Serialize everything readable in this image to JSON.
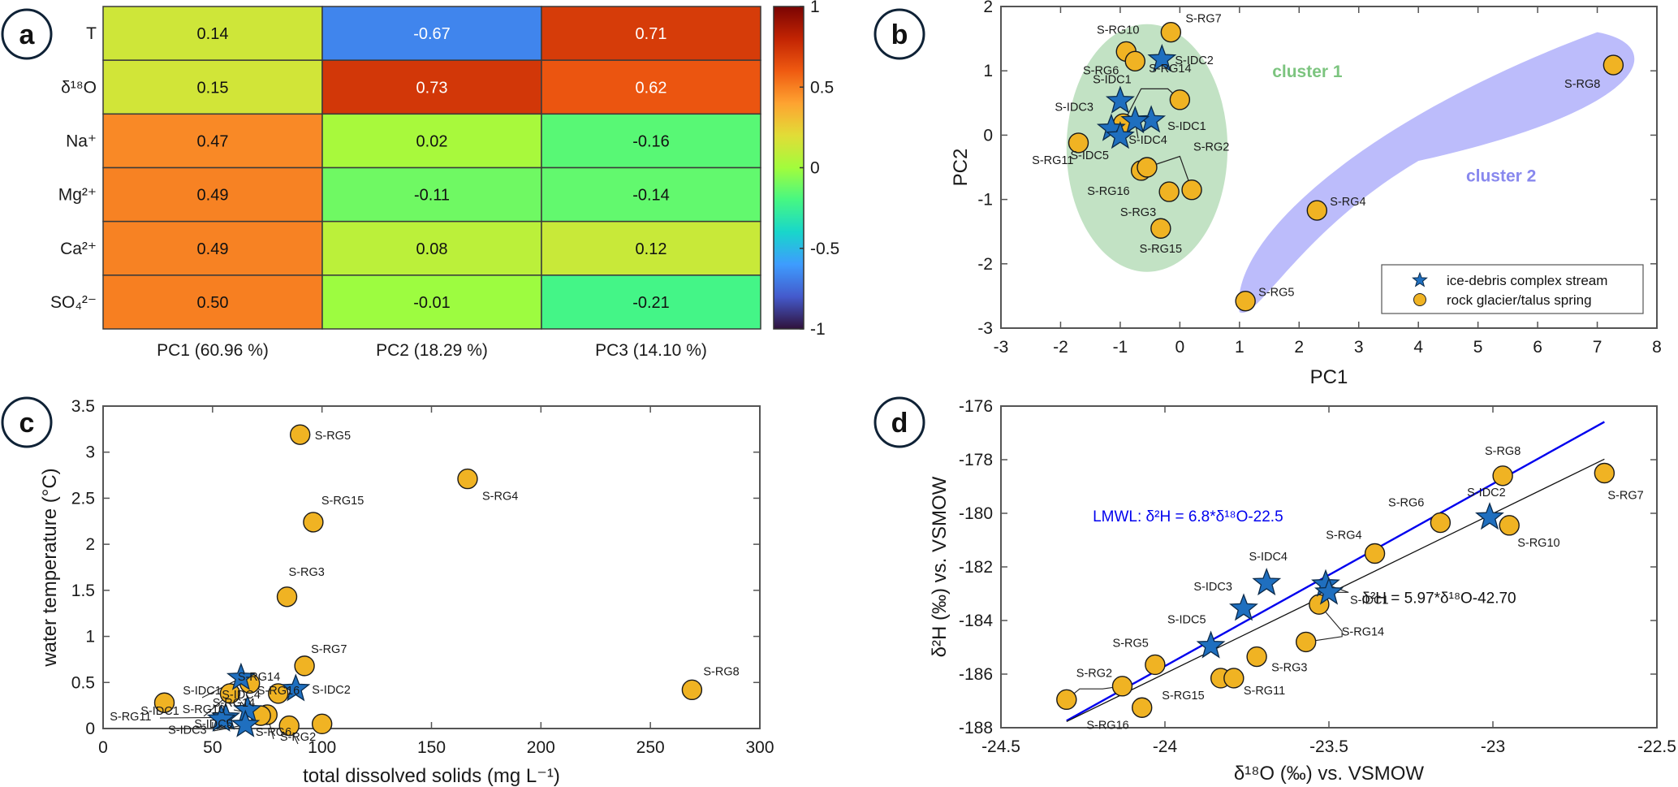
{
  "figure": {
    "panels": [
      "a",
      "b",
      "c",
      "d"
    ]
  },
  "colors": {
    "ice_debris": "#1f6fbf",
    "rock_glacier": "#f0b323",
    "cluster1_fill": "#c2e2c4",
    "cluster2_fill": "#bcbcfb",
    "cluster1_text": "#7cc47f",
    "cluster2_text": "#8888ee",
    "lmwl_line": "#0000ee",
    "regression_line": "#111111"
  },
  "chart_data": [
    {
      "panel": "a",
      "type": "heatmap",
      "title": "",
      "rows": [
        "T",
        "δ¹⁸O",
        "Na⁺",
        "Mg²⁺",
        "Ca²⁺",
        "SO₄²⁻"
      ],
      "columns": [
        "PC1 (60.96 %)",
        "PC2 (18.29 %)",
        "PC3 (14.10 %)"
      ],
      "values": [
        [
          0.14,
          -0.67,
          0.71
        ],
        [
          0.15,
          0.73,
          0.62
        ],
        [
          0.47,
          0.02,
          -0.16
        ],
        [
          0.49,
          -0.11,
          -0.14
        ],
        [
          0.49,
          0.08,
          0.12
        ],
        [
          0.5,
          -0.01,
          -0.21
        ]
      ],
      "value_labels": [
        [
          "0.14",
          "-0.67",
          "0.71"
        ],
        [
          "0.15",
          "0.73",
          "0.62"
        ],
        [
          "0.47",
          "0.02",
          "-0.16"
        ],
        [
          "0.49",
          "-0.11",
          "-0.14"
        ],
        [
          "0.49",
          "0.08",
          "0.12"
        ],
        [
          "0.50",
          "-0.01",
          "-0.21"
        ]
      ],
      "colorbar": {
        "range": [
          -1,
          1
        ],
        "ticks": [
          1,
          0.5,
          0,
          -0.5,
          -1
        ],
        "tick_labels": [
          "1",
          "0.5",
          "0",
          "-0.5",
          "-1"
        ],
        "colormap": "turbo"
      }
    },
    {
      "panel": "b",
      "type": "scatter",
      "xlabel": "PC1",
      "ylabel": "PC2",
      "xlim": [
        -3,
        8
      ],
      "ylim": [
        -3,
        2
      ],
      "xticks": [
        -3,
        -2,
        -1,
        0,
        1,
        2,
        3,
        4,
        5,
        6,
        7,
        8
      ],
      "yticks": [
        -3,
        -2,
        -1,
        0,
        1,
        2
      ],
      "annotations": [
        "cluster 1",
        "cluster 2"
      ],
      "legend": {
        "placement": "bottom-right",
        "entries": [
          "ice-debris complex stream",
          "rock glacier/talus spring"
        ]
      },
      "series": [
        {
          "name": "ice-debris complex stream",
          "marker": "star",
          "points": [
            {
              "label": "S-IDC2",
              "x": -0.3,
              "y": 1.18
            },
            {
              "label": "S-IDC1",
              "x": -1.0,
              "y": 0.53
            },
            {
              "label": "S-IDC1",
              "x": -0.48,
              "y": 0.23
            },
            {
              "label": "S-IDC4",
              "x": -0.75,
              "y": 0.22
            },
            {
              "label": "S-IDC3",
              "x": -1.15,
              "y": 0.1
            },
            {
              "label": "S-IDC5",
              "x": -1.0,
              "y": -0.02
            }
          ]
        },
        {
          "name": "rock glacier/talus spring",
          "marker": "circle",
          "points": [
            {
              "label": "S-RG7",
              "x": -0.15,
              "y": 1.6
            },
            {
              "label": "S-RG10",
              "x": -0.9,
              "y": 1.3
            },
            {
              "label": "S-RG6",
              "x": -0.75,
              "y": 1.15
            },
            {
              "label": "S-RG14",
              "x": 0.0,
              "y": 0.55
            },
            {
              "label": "S-RG14",
              "x": -0.95,
              "y": 0.18
            },
            {
              "label": "S-RG11",
              "x": -1.7,
              "y": -0.12
            },
            {
              "label": "S-RG16",
              "x": -0.65,
              "y": -0.55
            },
            {
              "label": "S-RG2",
              "x": -0.55,
              "y": -0.5
            },
            {
              "label": "S-RG2",
              "x": 0.2,
              "y": -0.85
            },
            {
              "label": "S-RG3",
              "x": -0.18,
              "y": -0.88
            },
            {
              "label": "S-RG15",
              "x": -0.32,
              "y": -1.45
            },
            {
              "label": "S-RG4",
              "x": 2.3,
              "y": -1.17
            },
            {
              "label": "S-RG5",
              "x": 1.1,
              "y": -2.58
            },
            {
              "label": "S-RG8",
              "x": 7.27,
              "y": 1.09
            }
          ]
        }
      ]
    },
    {
      "panel": "c",
      "type": "scatter",
      "xlabel": "total dissolved solids (mg L⁻¹)",
      "ylabel": "water temperature (°C)",
      "xlim": [
        0,
        300
      ],
      "ylim": [
        0,
        3.5
      ],
      "xticks": [
        0,
        50,
        100,
        150,
        200,
        250,
        300
      ],
      "yticks": [
        0,
        0.5,
        1,
        1.5,
        2,
        2.5,
        3,
        3.5
      ],
      "ytick_labels": [
        "0",
        "0.5",
        "1",
        "1.5",
        "2",
        "2.5",
        "3",
        "3.5"
      ],
      "series": [
        {
          "name": "ice-debris complex stream",
          "marker": "star",
          "points": [
            {
              "label": "S-IDC1",
              "x": 63,
              "y": 0.55
            },
            {
              "label": "S-IDC2",
              "x": 88,
              "y": 0.43
            },
            {
              "label": "S-IDC4",
              "x": 66,
              "y": 0.2
            },
            {
              "label": "S-IDC1",
              "x": 56,
              "y": 0.12
            },
            {
              "label": "S-IDC3",
              "x": 54,
              "y": 0.1
            },
            {
              "label": "S-IDC5",
              "x": 65,
              "y": 0.04
            }
          ]
        },
        {
          "name": "rock glacier/talus spring",
          "marker": "circle",
          "points": [
            {
              "label": "S-RG5",
              "x": 90,
              "y": 3.19
            },
            {
              "label": "S-RG4",
              "x": 166.5,
              "y": 2.71
            },
            {
              "label": "S-RG15",
              "x": 96,
              "y": 2.24
            },
            {
              "label": "S-RG3",
              "x": 84,
              "y": 1.43
            },
            {
              "label": "S-RG7",
              "x": 92,
              "y": 0.68
            },
            {
              "label": "S-RG14",
              "x": 67,
              "y": 0.49
            },
            {
              "label": "S-RG10",
              "x": 58,
              "y": 0.38
            },
            {
              "label": "S-RG16",
              "x": 80,
              "y": 0.38
            },
            {
              "label": "S-RG11",
              "x": 28,
              "y": 0.28
            },
            {
              "label": "S-RG6",
              "x": 75,
              "y": 0.15
            },
            {
              "label": "S-RG14",
              "x": 72,
              "y": 0.14
            },
            {
              "label": "S-RG2",
              "x": 85,
              "y": 0.03
            },
            {
              "label": "S-RG2",
              "x": 100,
              "y": 0.05
            },
            {
              "label": "S-RG8",
              "x": 269,
              "y": 0.42
            }
          ]
        }
      ]
    },
    {
      "panel": "d",
      "type": "scatter",
      "xlabel": "δ¹⁸O (‰) vs. VSMOW",
      "ylabel": "δ²H (‰) vs. VSMOW",
      "xlim": [
        -24.5,
        -22.5
      ],
      "ylim": [
        -188,
        -176
      ],
      "xticks": [
        -24.5,
        -24,
        -23.5,
        -23,
        -22.5
      ],
      "yticks": [
        -188,
        -186,
        -184,
        -182,
        -180,
        -178,
        -176
      ],
      "lines": [
        {
          "name": "LMWL",
          "label": "LMWL: δ²H = 6.8*δ¹⁸O-22.5",
          "slope": 6.8,
          "intercept": -22.5,
          "x_range": [
            -24.3,
            -22.66
          ]
        },
        {
          "name": "regression",
          "label": "δ²H = 5.97*δ¹⁸O-42.70",
          "slope": 5.97,
          "intercept": -42.7,
          "x_range": [
            -24.3,
            -22.66
          ]
        }
      ],
      "series": [
        {
          "name": "ice-debris complex stream",
          "marker": "star",
          "points": [
            {
              "label": "S-IDC2",
              "x": -23.01,
              "y": -180.15
            },
            {
              "label": "S-IDC4",
              "x": -23.69,
              "y": -182.6
            },
            {
              "label": "S-IDC1",
              "x": -23.51,
              "y": -182.65
            },
            {
              "label": "S-IDC1",
              "x": -23.5,
              "y": -182.95
            },
            {
              "label": "S-IDC3",
              "x": -23.76,
              "y": -183.55
            },
            {
              "label": "S-IDC5",
              "x": -23.86,
              "y": -184.95
            }
          ]
        },
        {
          "name": "rock glacier/talus spring",
          "marker": "circle",
          "points": [
            {
              "label": "S-RG8",
              "x": -22.97,
              "y": -178.6
            },
            {
              "label": "S-RG7",
              "x": -22.66,
              "y": -178.5
            },
            {
              "label": "S-RG6",
              "x": -23.16,
              "y": -180.35
            },
            {
              "label": "S-RG10",
              "x": -22.95,
              "y": -180.45
            },
            {
              "label": "S-RG4",
              "x": -23.36,
              "y": -181.5
            },
            {
              "label": "S-RG14",
              "x": -23.53,
              "y": -183.4
            },
            {
              "label": "S-RG14",
              "x": -23.57,
              "y": -184.8
            },
            {
              "label": "S-RG3",
              "x": -23.72,
              "y": -185.35
            },
            {
              "label": "S-RG5",
              "x": -24.03,
              "y": -185.65
            },
            {
              "label": "S-RG15",
              "x": -23.83,
              "y": -186.15
            },
            {
              "label": "S-RG11",
              "x": -23.79,
              "y": -186.15
            },
            {
              "label": "S-RG2",
              "x": -24.13,
              "y": -186.45
            },
            {
              "label": "S-RG2",
              "x": -24.3,
              "y": -186.95
            },
            {
              "label": "S-RG16",
              "x": -24.07,
              "y": -187.25
            }
          ]
        }
      ]
    }
  ]
}
